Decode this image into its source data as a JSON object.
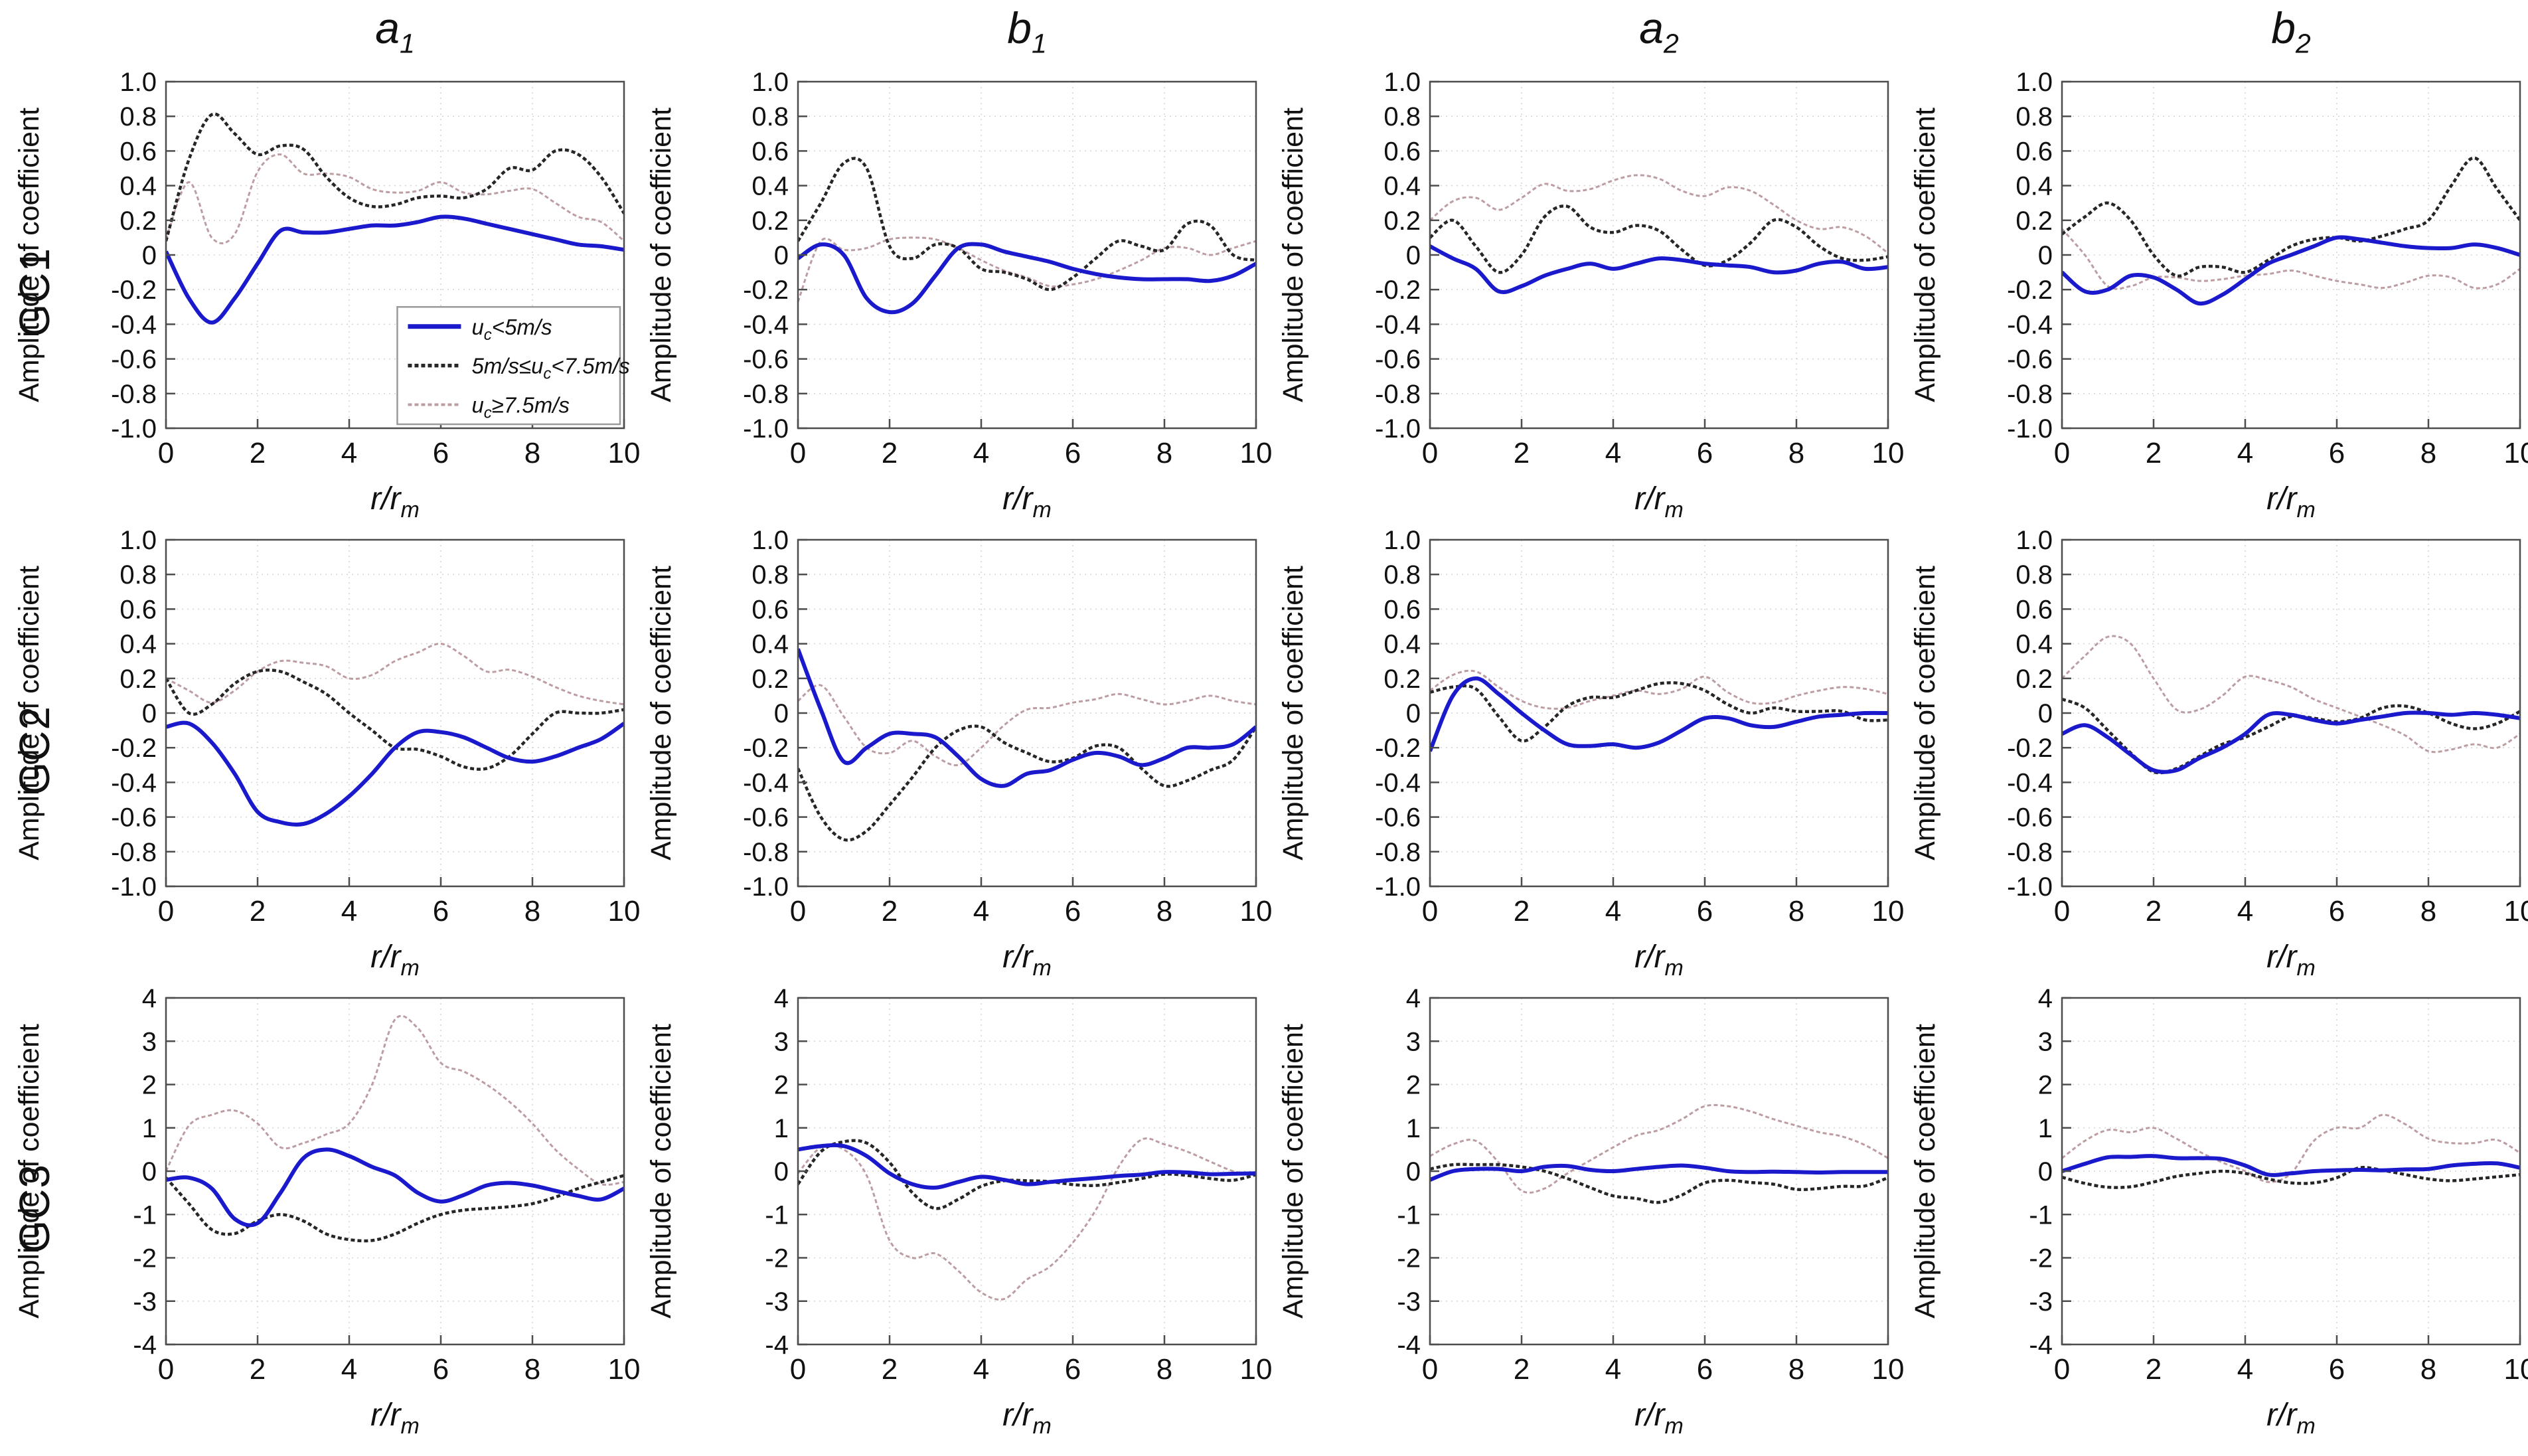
{
  "figure": {
    "background": "#ffffff",
    "text_color": "#111111",
    "axis_color": "#4d4d4d",
    "grid_color": "#d6d6d6"
  },
  "chart_data": {
    "type": "line",
    "x": [
      0,
      0.5,
      1,
      1.5,
      2,
      2.5,
      3,
      3.5,
      4,
      4.5,
      5,
      5.5,
      6,
      6.5,
      7,
      7.5,
      8,
      8.5,
      9,
      9.5,
      10
    ],
    "xticks": [
      0,
      2,
      4,
      6,
      8,
      10
    ],
    "xlabel": {
      "main": "r/r",
      "sub": "m"
    },
    "ylabel": "Amplitude of coefficient",
    "col_titles": [
      {
        "main": "a",
        "sub": "1"
      },
      {
        "main": "b",
        "sub": "1"
      },
      {
        "main": "a",
        "sub": "2"
      },
      {
        "main": "b",
        "sub": "2"
      }
    ],
    "rows": [
      {
        "label": "GC1",
        "ylim": [
          -1,
          1
        ],
        "yticks": [
          [
            1,
            "1.0"
          ],
          [
            0.8,
            "0.8"
          ],
          [
            0.6,
            "0.6"
          ],
          [
            0.4,
            "0.4"
          ],
          [
            0.2,
            "0.2"
          ],
          [
            0,
            "0"
          ],
          [
            -0.2,
            "-0.2"
          ],
          [
            -0.4,
            "-0.4"
          ],
          [
            -0.6,
            "-0.6"
          ],
          [
            -0.8,
            "-0.8"
          ],
          [
            -1,
            "-1.0"
          ]
        ]
      },
      {
        "label": "GC2",
        "ylim": [
          -1,
          1
        ],
        "yticks": [
          [
            1,
            "1.0"
          ],
          [
            0.8,
            "0.8"
          ],
          [
            0.6,
            "0.6"
          ],
          [
            0.4,
            "0.4"
          ],
          [
            0.2,
            "0.2"
          ],
          [
            0,
            "0"
          ],
          [
            -0.2,
            "-0.2"
          ],
          [
            -0.4,
            "-0.4"
          ],
          [
            -0.6,
            "-0.6"
          ],
          [
            -0.8,
            "-0.8"
          ],
          [
            -1,
            "-1.0"
          ]
        ]
      },
      {
        "label": "GC3",
        "ylim": [
          -4,
          4
        ],
        "yticks": [
          [
            4,
            "4"
          ],
          [
            3,
            "3"
          ],
          [
            2,
            "2"
          ],
          [
            1,
            "1"
          ],
          [
            0,
            "0"
          ],
          [
            -1,
            "-1"
          ],
          [
            -2,
            "-2"
          ],
          [
            -3,
            "-3"
          ],
          [
            -4,
            "-4"
          ]
        ]
      }
    ],
    "series_meta": [
      {
        "id": "uc_lt_5",
        "color": "#1a1acc",
        "dash": "",
        "width": 6,
        "label": {
          "pre": "",
          "base": "u",
          "sub": "c",
          "post": "<5m/s"
        }
      },
      {
        "id": "uc_5_to_7p5",
        "color": "#262626",
        "dash": "6 4",
        "width": 4.5,
        "label": {
          "pre": "5m/s≤",
          "base": "u",
          "sub": "c",
          "post": "<7.5m/s"
        }
      },
      {
        "id": "uc_ge_7p5",
        "color": "#bc9da2",
        "dash": "6 4",
        "width": 3,
        "label": {
          "pre": "",
          "base": "u",
          "sub": "c",
          "post": "≥7.5m/s"
        }
      }
    ],
    "legend": {
      "on_plot": "GC1-a1",
      "x_start": 5.05,
      "y_top": -0.3
    },
    "plots": [
      {
        "gc": "GC1",
        "col": "a1",
        "row": 0,
        "uc_lt_5": [
          0.02,
          -0.25,
          -0.39,
          -0.25,
          -0.05,
          0.14,
          0.13,
          0.13,
          0.15,
          0.17,
          0.17,
          0.19,
          0.22,
          0.21,
          0.18,
          0.15,
          0.12,
          0.09,
          0.06,
          0.05,
          0.03
        ],
        "uc_5_to_7p5": [
          0.08,
          0.55,
          0.81,
          0.7,
          0.58,
          0.63,
          0.61,
          0.45,
          0.33,
          0.28,
          0.29,
          0.33,
          0.34,
          0.33,
          0.38,
          0.5,
          0.49,
          0.6,
          0.58,
          0.45,
          0.24
        ],
        "uc_ge_7p5": [
          0.09,
          0.42,
          0.1,
          0.12,
          0.48,
          0.58,
          0.47,
          0.47,
          0.45,
          0.38,
          0.36,
          0.37,
          0.42,
          0.36,
          0.35,
          0.37,
          0.38,
          0.3,
          0.22,
          0.19,
          0.08
        ]
      },
      {
        "gc": "GC1",
        "col": "b1",
        "row": 0,
        "uc_lt_5": [
          -0.02,
          0.06,
          0.0,
          -0.25,
          -0.33,
          -0.28,
          -0.12,
          0.04,
          0.06,
          0.02,
          -0.01,
          -0.04,
          -0.08,
          -0.11,
          -0.13,
          -0.14,
          -0.14,
          -0.14,
          -0.15,
          -0.12,
          -0.05
        ],
        "uc_5_to_7p5": [
          0.08,
          0.3,
          0.53,
          0.5,
          0.05,
          -0.02,
          0.06,
          0.04,
          -0.08,
          -0.1,
          -0.14,
          -0.2,
          -0.13,
          -0.02,
          0.08,
          0.05,
          0.03,
          0.18,
          0.17,
          0.0,
          -0.03
        ],
        "uc_ge_7p5": [
          -0.27,
          0.08,
          0.03,
          0.04,
          0.09,
          0.1,
          0.09,
          0.04,
          -0.03,
          -0.09,
          -0.13,
          -0.18,
          -0.17,
          -0.14,
          -0.09,
          -0.03,
          0.04,
          0.04,
          0.0,
          0.04,
          0.08
        ]
      },
      {
        "gc": "GC1",
        "col": "a2",
        "row": 0,
        "uc_lt_5": [
          0.05,
          -0.02,
          -0.08,
          -0.21,
          -0.18,
          -0.12,
          -0.08,
          -0.05,
          -0.08,
          -0.05,
          -0.02,
          -0.03,
          -0.05,
          -0.06,
          -0.07,
          -0.1,
          -0.09,
          -0.05,
          -0.04,
          -0.08,
          -0.07
        ],
        "uc_5_to_7p5": [
          0.1,
          0.2,
          0.05,
          -0.1,
          0.0,
          0.22,
          0.28,
          0.16,
          0.13,
          0.17,
          0.14,
          0.03,
          -0.06,
          -0.03,
          0.07,
          0.2,
          0.16,
          0.05,
          -0.02,
          -0.03,
          -0.01
        ],
        "uc_ge_7p5": [
          0.2,
          0.31,
          0.33,
          0.26,
          0.33,
          0.41,
          0.37,
          0.38,
          0.43,
          0.46,
          0.44,
          0.37,
          0.34,
          0.39,
          0.37,
          0.29,
          0.2,
          0.15,
          0.16,
          0.11,
          0.01
        ]
      },
      {
        "gc": "GC1",
        "col": "b2",
        "row": 0,
        "uc_lt_5": [
          -0.1,
          -0.21,
          -0.2,
          -0.12,
          -0.13,
          -0.2,
          -0.28,
          -0.23,
          -0.14,
          -0.05,
          0.0,
          0.05,
          0.1,
          0.09,
          0.07,
          0.05,
          0.04,
          0.04,
          0.06,
          0.04,
          0.0
        ],
        "uc_5_to_7p5": [
          0.12,
          0.22,
          0.3,
          0.2,
          0.0,
          -0.12,
          -0.07,
          -0.07,
          -0.1,
          -0.03,
          0.05,
          0.09,
          0.1,
          0.08,
          0.11,
          0.15,
          0.2,
          0.4,
          0.56,
          0.38,
          0.2
        ],
        "uc_ge_7p5": [
          0.15,
          0.0,
          -0.18,
          -0.18,
          -0.13,
          -0.13,
          -0.15,
          -0.14,
          -0.12,
          -0.11,
          -0.09,
          -0.12,
          -0.15,
          -0.17,
          -0.19,
          -0.16,
          -0.12,
          -0.13,
          -0.19,
          -0.17,
          -0.08
        ]
      },
      {
        "gc": "GC2",
        "col": "a1",
        "row": 1,
        "uc_lt_5": [
          -0.08,
          -0.06,
          -0.17,
          -0.35,
          -0.57,
          -0.63,
          -0.64,
          -0.58,
          -0.48,
          -0.35,
          -0.2,
          -0.11,
          -0.11,
          -0.14,
          -0.2,
          -0.26,
          -0.28,
          -0.25,
          -0.2,
          -0.15,
          -0.06
        ],
        "uc_5_to_7p5": [
          0.2,
          0.0,
          0.05,
          0.17,
          0.24,
          0.24,
          0.18,
          0.11,
          0.0,
          -0.1,
          -0.2,
          -0.21,
          -0.25,
          -0.31,
          -0.32,
          -0.25,
          -0.12,
          0.0,
          0.0,
          0.0,
          0.02
        ],
        "uc_ge_7p5": [
          0.2,
          0.13,
          0.06,
          0.13,
          0.24,
          0.3,
          0.29,
          0.27,
          0.2,
          0.22,
          0.3,
          0.35,
          0.4,
          0.33,
          0.24,
          0.25,
          0.21,
          0.15,
          0.1,
          0.07,
          0.05
        ]
      },
      {
        "gc": "GC2",
        "col": "b1",
        "row": 1,
        "uc_lt_5": [
          0.37,
          0.02,
          -0.28,
          -0.2,
          -0.12,
          -0.12,
          -0.14,
          -0.25,
          -0.38,
          -0.42,
          -0.35,
          -0.33,
          -0.27,
          -0.23,
          -0.25,
          -0.3,
          -0.26,
          -0.2,
          -0.2,
          -0.18,
          -0.08
        ],
        "uc_5_to_7p5": [
          -0.32,
          -0.6,
          -0.73,
          -0.68,
          -0.53,
          -0.37,
          -0.2,
          -0.1,
          -0.08,
          -0.17,
          -0.23,
          -0.28,
          -0.26,
          -0.19,
          -0.2,
          -0.32,
          -0.42,
          -0.39,
          -0.33,
          -0.27,
          -0.08
        ],
        "uc_ge_7p5": [
          0.07,
          0.16,
          -0.02,
          -0.2,
          -0.23,
          -0.16,
          -0.25,
          -0.3,
          -0.2,
          -0.07,
          0.02,
          0.03,
          0.06,
          0.08,
          0.11,
          0.08,
          0.05,
          0.07,
          0.1,
          0.07,
          0.05
        ]
      },
      {
        "gc": "GC2",
        "col": "a2",
        "row": 1,
        "uc_lt_5": [
          -0.22,
          0.1,
          0.2,
          0.11,
          0.0,
          -0.1,
          -0.18,
          -0.19,
          -0.18,
          -0.2,
          -0.17,
          -0.1,
          -0.03,
          -0.03,
          -0.07,
          -0.08,
          -0.05,
          -0.02,
          -0.01,
          0.0,
          0.0
        ],
        "uc_5_to_7p5": [
          0.12,
          0.15,
          0.14,
          -0.02,
          -0.16,
          -0.08,
          0.04,
          0.09,
          0.09,
          0.13,
          0.17,
          0.17,
          0.13,
          0.05,
          0.0,
          0.03,
          0.01,
          0.01,
          0.01,
          -0.04,
          -0.04
        ],
        "uc_ge_7p5": [
          0.13,
          0.22,
          0.24,
          0.15,
          0.07,
          0.03,
          0.03,
          0.07,
          0.1,
          0.13,
          0.11,
          0.14,
          0.21,
          0.12,
          0.06,
          0.06,
          0.1,
          0.13,
          0.15,
          0.14,
          0.11
        ]
      },
      {
        "gc": "GC2",
        "col": "b2",
        "row": 1,
        "uc_lt_5": [
          -0.12,
          -0.07,
          -0.14,
          -0.24,
          -0.33,
          -0.33,
          -0.26,
          -0.2,
          -0.12,
          -0.01,
          -0.01,
          -0.04,
          -0.06,
          -0.04,
          -0.02,
          0.0,
          0.0,
          -0.01,
          0.0,
          -0.01,
          -0.03
        ],
        "uc_5_to_7p5": [
          0.08,
          0.03,
          -0.1,
          -0.23,
          -0.34,
          -0.32,
          -0.25,
          -0.18,
          -0.14,
          -0.08,
          -0.02,
          -0.03,
          -0.05,
          -0.03,
          0.03,
          0.04,
          0.0,
          -0.06,
          -0.09,
          -0.06,
          0.01
        ],
        "uc_ge_7p5": [
          0.2,
          0.33,
          0.44,
          0.4,
          0.2,
          0.02,
          0.02,
          0.1,
          0.21,
          0.19,
          0.15,
          0.08,
          0.03,
          -0.02,
          -0.07,
          -0.13,
          -0.22,
          -0.21,
          -0.18,
          -0.2,
          -0.12
        ]
      },
      {
        "gc": "GC3",
        "col": "a1",
        "row": 2,
        "uc_lt_5": [
          -0.2,
          -0.15,
          -0.4,
          -1.1,
          -1.2,
          -0.5,
          0.3,
          0.5,
          0.35,
          0.1,
          -0.1,
          -0.5,
          -0.7,
          -0.55,
          -0.33,
          -0.27,
          -0.33,
          -0.45,
          -0.57,
          -0.65,
          -0.4
        ],
        "uc_5_to_7p5": [
          -0.15,
          -0.75,
          -1.35,
          -1.44,
          -1.15,
          -1.0,
          -1.15,
          -1.45,
          -1.58,
          -1.6,
          -1.45,
          -1.2,
          -1.0,
          -0.9,
          -0.86,
          -0.82,
          -0.75,
          -0.6,
          -0.4,
          -0.25,
          -0.1
        ],
        "uc_ge_7p5": [
          0.0,
          1.05,
          1.3,
          1.4,
          1.1,
          0.55,
          0.65,
          0.85,
          1.1,
          2.0,
          3.5,
          3.3,
          2.5,
          2.3,
          2.0,
          1.6,
          1.1,
          0.5,
          0.05,
          -0.3,
          -0.25
        ]
      },
      {
        "gc": "GC3",
        "col": "b1",
        "row": 2,
        "uc_lt_5": [
          0.5,
          0.58,
          0.58,
          0.35,
          -0.05,
          -0.3,
          -0.38,
          -0.25,
          -0.13,
          -0.2,
          -0.3,
          -0.25,
          -0.2,
          -0.16,
          -0.11,
          -0.08,
          -0.02,
          -0.03,
          -0.07,
          -0.06,
          -0.05
        ],
        "uc_5_to_7p5": [
          -0.3,
          0.45,
          0.68,
          0.65,
          0.2,
          -0.5,
          -0.86,
          -0.65,
          -0.35,
          -0.22,
          -0.22,
          -0.24,
          -0.31,
          -0.33,
          -0.26,
          -0.17,
          -0.07,
          -0.1,
          -0.17,
          -0.21,
          -0.08
        ],
        "uc_ge_7p5": [
          -0.05,
          0.55,
          0.5,
          -0.1,
          -1.6,
          -2.0,
          -1.9,
          -2.3,
          -2.8,
          -2.95,
          -2.5,
          -2.2,
          -1.65,
          -0.9,
          0.1,
          0.73,
          0.62,
          0.45,
          0.22,
          0.0,
          -0.1
        ]
      },
      {
        "gc": "GC3",
        "col": "a2",
        "row": 2,
        "uc_lt_5": [
          -0.2,
          0.0,
          0.05,
          0.05,
          0.0,
          0.1,
          0.12,
          0.03,
          0.0,
          0.05,
          0.1,
          0.13,
          0.08,
          0.0,
          -0.02,
          -0.01,
          -0.02,
          -0.03,
          -0.02,
          -0.02,
          -0.02
        ],
        "uc_5_to_7p5": [
          0.05,
          0.15,
          0.15,
          0.15,
          0.1,
          0.0,
          -0.17,
          -0.38,
          -0.57,
          -0.63,
          -0.72,
          -0.55,
          -0.27,
          -0.21,
          -0.26,
          -0.3,
          -0.42,
          -0.4,
          -0.35,
          -0.34,
          -0.15
        ],
        "uc_ge_7p5": [
          0.35,
          0.62,
          0.7,
          0.2,
          -0.45,
          -0.4,
          -0.05,
          0.25,
          0.55,
          0.82,
          0.95,
          1.2,
          1.5,
          1.5,
          1.38,
          1.2,
          1.05,
          0.9,
          0.8,
          0.6,
          0.3
        ]
      },
      {
        "gc": "GC3",
        "col": "b2",
        "row": 2,
        "uc_lt_5": [
          0.0,
          0.17,
          0.32,
          0.33,
          0.35,
          0.3,
          0.3,
          0.28,
          0.13,
          -0.08,
          -0.05,
          0.0,
          0.02,
          0.03,
          0.02,
          0.04,
          0.05,
          0.13,
          0.17,
          0.18,
          0.08
        ],
        "uc_5_to_7p5": [
          -0.14,
          -0.28,
          -0.37,
          -0.36,
          -0.25,
          -0.12,
          -0.05,
          0.0,
          -0.05,
          -0.18,
          -0.27,
          -0.27,
          -0.15,
          0.08,
          0.02,
          -0.08,
          -0.18,
          -0.22,
          -0.18,
          -0.13,
          -0.08
        ],
        "uc_ge_7p5": [
          0.3,
          0.7,
          0.95,
          0.9,
          1.0,
          0.75,
          0.45,
          0.2,
          0.0,
          -0.25,
          -0.05,
          0.7,
          1.0,
          1.0,
          1.3,
          1.08,
          0.75,
          0.65,
          0.65,
          0.72,
          0.42
        ]
      }
    ]
  }
}
